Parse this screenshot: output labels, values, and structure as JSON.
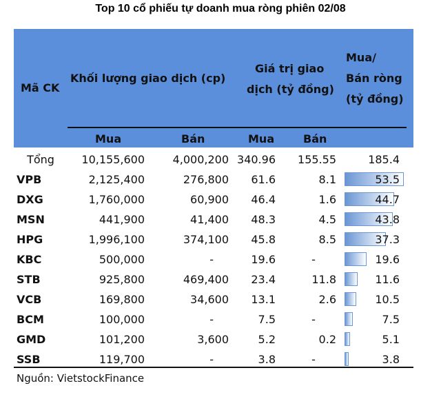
{
  "title": "Top 10 cổ phiếu tự doanh mua ròng phiên 02/08",
  "headers": {
    "ck": "Mã CK",
    "volume": "Khối lượng giao dịch (cp)",
    "value_line1": "Giá trị giao",
    "value_line2": "dịch (tỷ đồng)",
    "net_line1": "Mua/",
    "net_line2": "Bán ròng",
    "net_line3": "(tỷ đồng)",
    "buy": "Mua",
    "sell": "Bán",
    "buy2": "Mua",
    "sell2": "Bán"
  },
  "total": {
    "label": "Tổng",
    "vol_buy": "10,155,600",
    "vol_sell": "4,000,200",
    "val_buy": "340.96",
    "val_sell": "155.55",
    "net": "185.4"
  },
  "source": "Nguồn: VietstockFinance",
  "colors": {
    "header": "#5b8fdb",
    "bar": "#6a96d4"
  },
  "chart_data": {
    "type": "table",
    "columns": [
      "Mã CK",
      "Khối lượng Mua",
      "Khối lượng Bán",
      "Giá trị Mua",
      "Giá trị Bán",
      "Mua/Bán ròng"
    ],
    "rows": [
      {
        "ck": "VPB",
        "vol_buy": "2,125,400",
        "vol_sell": "276,800",
        "val_buy": "61.6",
        "val_sell": "8.1",
        "net": "53.5"
      },
      {
        "ck": "DXG",
        "vol_buy": "1,760,000",
        "vol_sell": "60,900",
        "val_buy": "46.4",
        "val_sell": "1.6",
        "net": "44.7"
      },
      {
        "ck": "MSN",
        "vol_buy": "441,900",
        "vol_sell": "41,400",
        "val_buy": "48.3",
        "val_sell": "4.5",
        "net": "43.8"
      },
      {
        "ck": "HPG",
        "vol_buy": "1,996,100",
        "vol_sell": "374,100",
        "val_buy": "45.8",
        "val_sell": "8.5",
        "net": "37.3"
      },
      {
        "ck": "KBC",
        "vol_buy": "500,000",
        "vol_sell": "-",
        "val_buy": "19.6",
        "val_sell": "-",
        "net": "19.6"
      },
      {
        "ck": "STB",
        "vol_buy": "925,800",
        "vol_sell": "469,400",
        "val_buy": "23.4",
        "val_sell": "11.8",
        "net": "11.6"
      },
      {
        "ck": "VCB",
        "vol_buy": "169,800",
        "vol_sell": "34,600",
        "val_buy": "13.1",
        "val_sell": "2.6",
        "net": "10.5"
      },
      {
        "ck": "BCM",
        "vol_buy": "100,000",
        "vol_sell": "-",
        "val_buy": "7.5",
        "val_sell": "-",
        "net": "7.5"
      },
      {
        "ck": "GMD",
        "vol_buy": "101,200",
        "vol_sell": "3,600",
        "val_buy": "5.2",
        "val_sell": "0.2",
        "net": "5.1"
      },
      {
        "ck": "SSB",
        "vol_buy": "119,700",
        "vol_sell": "-",
        "val_buy": "3.8",
        "val_sell": "-",
        "net": "3.8"
      }
    ]
  }
}
